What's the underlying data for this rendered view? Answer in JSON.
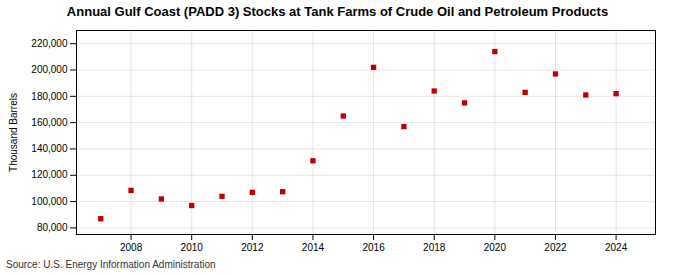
{
  "chart_data": {
    "type": "scatter",
    "title": "Annual Gulf Coast (PADD 3) Stocks at Tank Farms of Crude Oil and Petroleum Products",
    "ylabel": "Thousand Barrels",
    "source": "Source: U.S. Energy Information Administration",
    "x": [
      2007,
      2008,
      2009,
      2010,
      2011,
      2012,
      2013,
      2014,
      2015,
      2016,
      2017,
      2018,
      2019,
      2020,
      2021,
      2022,
      2023,
      2024
    ],
    "values": [
      87000,
      108500,
      102000,
      97000,
      104000,
      107000,
      107500,
      131000,
      165000,
      202000,
      157000,
      184000,
      175000,
      214000,
      183000,
      197000,
      181000,
      182000
    ],
    "color": "#c00000",
    "marker": "square",
    "xlim": [
      2006.2,
      2025.3
    ],
    "xticks": [
      2008,
      2010,
      2012,
      2014,
      2016,
      2018,
      2020,
      2022,
      2024
    ],
    "ylim": [
      75000,
      230000
    ],
    "yticks": [
      {
        "value": 80000,
        "label": "80,000"
      },
      {
        "value": 100000,
        "label": "100,000"
      },
      {
        "value": 120000,
        "label": "120,000"
      },
      {
        "value": 140000,
        "label": "140,000"
      },
      {
        "value": 160000,
        "label": "160,000"
      },
      {
        "value": 180000,
        "label": "180,000"
      },
      {
        "value": 200000,
        "label": "200,000"
      },
      {
        "value": 220000,
        "label": "220,000"
      }
    ],
    "grid": true
  }
}
